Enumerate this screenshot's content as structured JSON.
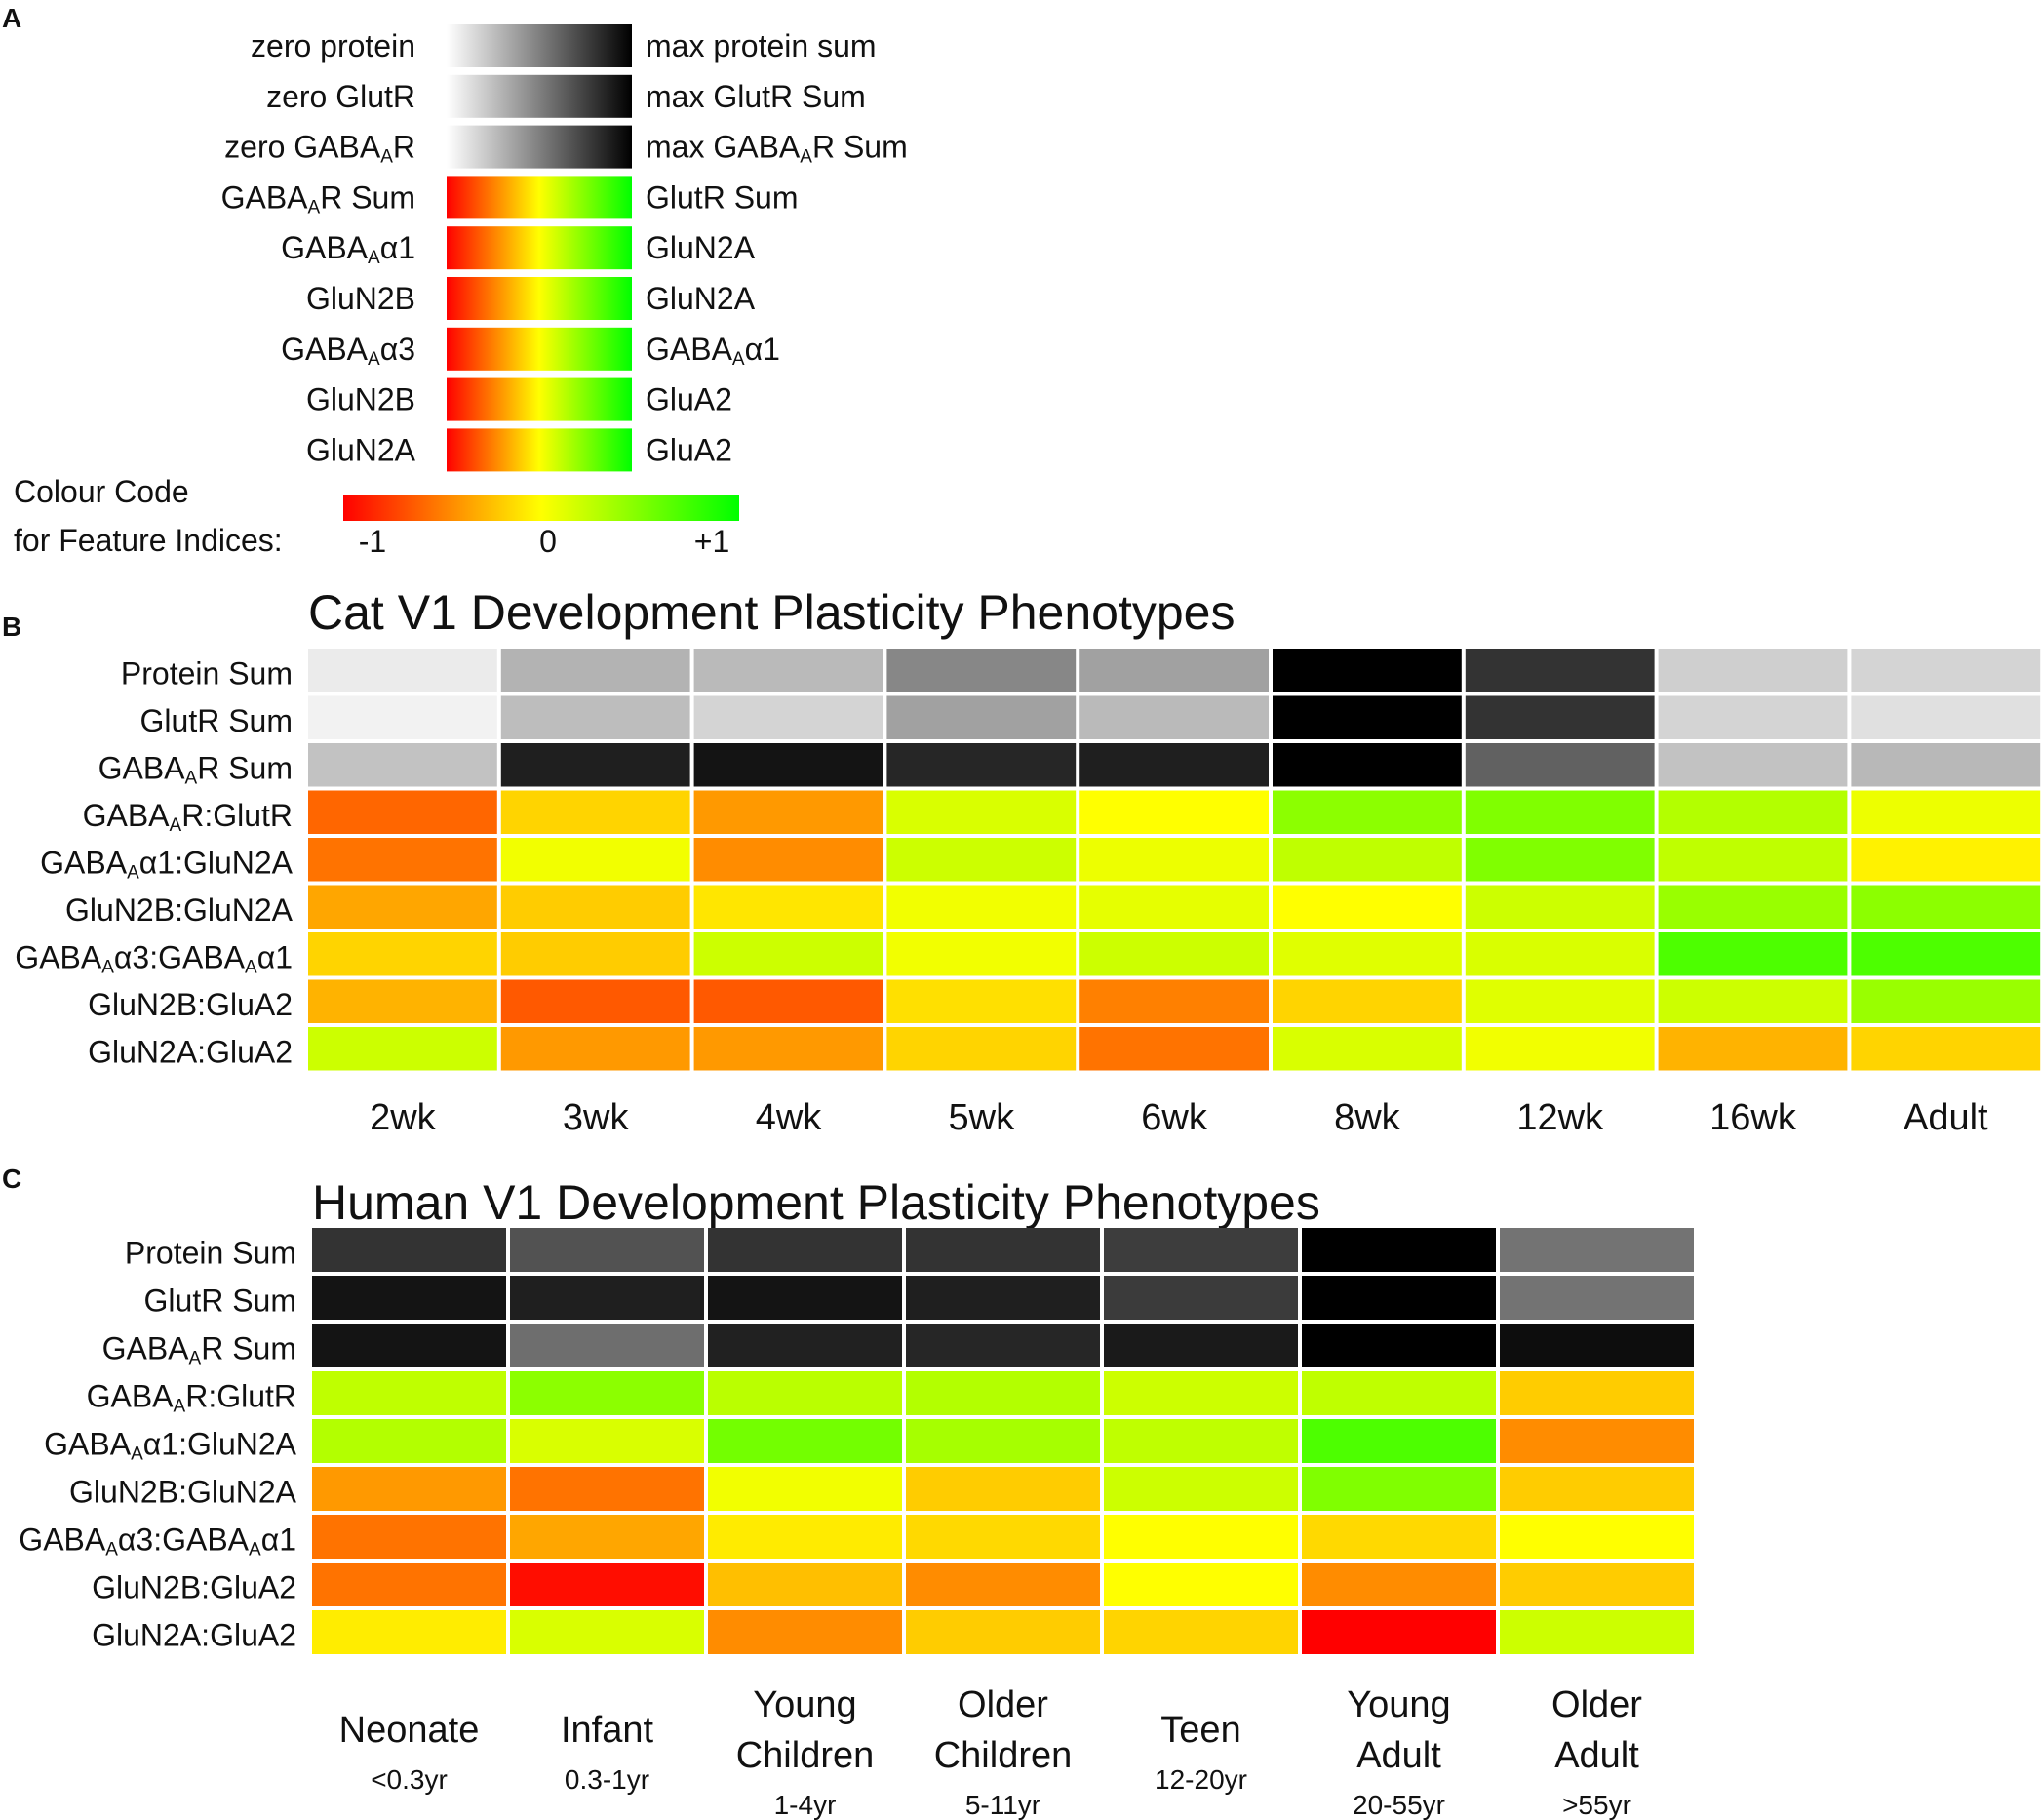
{
  "figure": {
    "panel_letters": [
      "A",
      "B",
      "C"
    ]
  },
  "legend": {
    "bars": [
      {
        "left": "zero protein",
        "right": "max protein sum",
        "kind": "gray"
      },
      {
        "left": "zero GlutR",
        "right": "max GlutR Sum",
        "kind": "gray"
      },
      {
        "left": "zero GABA<sub>A</sub>R",
        "right": "max GABA<sub>A</sub>R Sum",
        "kind": "gray"
      },
      {
        "left": "GABA<sub>A</sub>R Sum",
        "right": "GlutR Sum",
        "kind": "color"
      },
      {
        "left": "GABA<sub>A</sub>α1",
        "right": "GluN2A",
        "kind": "color"
      },
      {
        "left": "GluN2B",
        "right": "GluN2A",
        "kind": "color"
      },
      {
        "left": "GABA<sub>A</sub>α3",
        "right": "GABA<sub>A</sub>α1",
        "kind": "color"
      },
      {
        "left": "GluN2B",
        "right": "GluA2",
        "kind": "color"
      },
      {
        "left": "GluN2A",
        "right": "GluA2",
        "kind": "color"
      }
    ],
    "colour_code_title": [
      "Colour Code",
      "for Feature Indices:"
    ],
    "colour_code_ticks": [
      "-1",
      "0",
      "+1"
    ],
    "colours": {
      "neg": "#ff0000",
      "mid": "#ffff00",
      "pos": "#00ff00",
      "orange": "#ff8c00",
      "black": "#000000",
      "white": "#ffffff"
    }
  },
  "chart_data": [
    {
      "type": "heatmap",
      "title": "Cat V1 Development Plasticity Phenotypes",
      "rows": [
        "Protein Sum",
        "GlutR Sum",
        "GABA<sub>A</sub>R Sum",
        "GABA<sub>A</sub>R:GlutR",
        "GABA<sub>A</sub>α1:GluN2A",
        "GluN2B:GluN2A",
        "GABA<sub>A</sub>α3:GABA<sub>A</sub>α1",
        "GluN2B:GluA2",
        "GluN2A:GluA2"
      ],
      "columns": [
        {
          "label": "2wk"
        },
        {
          "label": "3wk"
        },
        {
          "label": "4wk"
        },
        {
          "label": "5wk"
        },
        {
          "label": "6wk"
        },
        {
          "label": "8wk"
        },
        {
          "label": "12wk"
        },
        {
          "label": "16wk"
        },
        {
          "label": "Adult"
        }
      ],
      "gray_rows": 3,
      "gray_values": [
        [
          0.08,
          0.3,
          0.27,
          0.47,
          0.37,
          1.0,
          0.8,
          0.19,
          0.17
        ],
        [
          0.05,
          0.26,
          0.17,
          0.37,
          0.27,
          1.0,
          0.8,
          0.17,
          0.12
        ],
        [
          0.24,
          0.88,
          0.92,
          0.85,
          0.88,
          1.0,
          0.62,
          0.24,
          0.28
        ]
      ],
      "index_values": [
        [
          -0.6,
          -0.17,
          -0.4,
          0.15,
          0.0,
          0.45,
          0.5,
          0.3,
          0.07
        ],
        [
          -0.55,
          0.05,
          -0.45,
          0.2,
          0.07,
          0.25,
          0.5,
          0.25,
          -0.05
        ],
        [
          -0.35,
          -0.2,
          -0.1,
          0.05,
          0.1,
          0.0,
          0.2,
          0.4,
          0.45
        ],
        [
          -0.17,
          -0.2,
          0.2,
          0.05,
          0.2,
          0.12,
          0.15,
          0.7,
          0.7
        ],
        [
          -0.3,
          -0.65,
          -0.65,
          -0.12,
          -0.5,
          -0.17,
          0.12,
          0.2,
          0.4
        ],
        [
          0.2,
          -0.4,
          -0.4,
          -0.17,
          -0.55,
          0.15,
          0.05,
          -0.3,
          -0.17
        ]
      ]
    },
    {
      "type": "heatmap",
      "title": "Human V1 Development Plasticity Phenotypes",
      "rows": [
        "Protein Sum",
        "GlutR Sum",
        "GABA<sub>A</sub>R Sum",
        "GABA<sub>A</sub>R:GlutR",
        "GABA<sub>A</sub>α1:GluN2A",
        "GluN2B:GluN2A",
        "GABA<sub>A</sub>α3:GABA<sub>A</sub>α1",
        "GluN2B:GluA2",
        "GluN2A:GluA2"
      ],
      "columns": [
        {
          "label": "Neonate",
          "label2": "",
          "sub": "<0.3yr"
        },
        {
          "label": "Infant",
          "label2": "",
          "sub": "0.3-1yr"
        },
        {
          "label": "Young",
          "label2": "Children",
          "sub": "1-4yr"
        },
        {
          "label": "Older",
          "label2": "Children",
          "sub": "5-11yr"
        },
        {
          "label": "Teen",
          "label2": "",
          "sub": "12-20yr"
        },
        {
          "label": "Young",
          "label2": "Adult",
          "sub": "20-55yr"
        },
        {
          "label": "Older",
          "label2": "Adult",
          "sub": ">55yr"
        }
      ],
      "gray_rows": 3,
      "gray_values": [
        [
          0.8,
          0.68,
          0.8,
          0.8,
          0.76,
          1.0,
          0.55
        ],
        [
          0.92,
          0.88,
          0.92,
          0.88,
          0.77,
          1.0,
          0.55
        ],
        [
          0.92,
          0.57,
          0.87,
          0.85,
          0.9,
          1.0,
          0.95
        ]
      ],
      "index_values": [
        [
          0.25,
          0.45,
          0.27,
          0.3,
          0.2,
          0.25,
          -0.2
        ],
        [
          0.3,
          0.15,
          0.55,
          0.35,
          0.25,
          0.7,
          -0.45
        ],
        [
          -0.4,
          -0.55,
          0.05,
          -0.2,
          0.2,
          0.5,
          -0.2
        ],
        [
          -0.55,
          -0.35,
          -0.08,
          -0.15,
          0.0,
          -0.15,
          0.0
        ],
        [
          -0.55,
          -0.95,
          -0.25,
          -0.45,
          0.0,
          -0.45,
          -0.2
        ],
        [
          -0.07,
          0.15,
          -0.45,
          -0.2,
          -0.17,
          -1.0,
          0.2
        ]
      ]
    }
  ]
}
